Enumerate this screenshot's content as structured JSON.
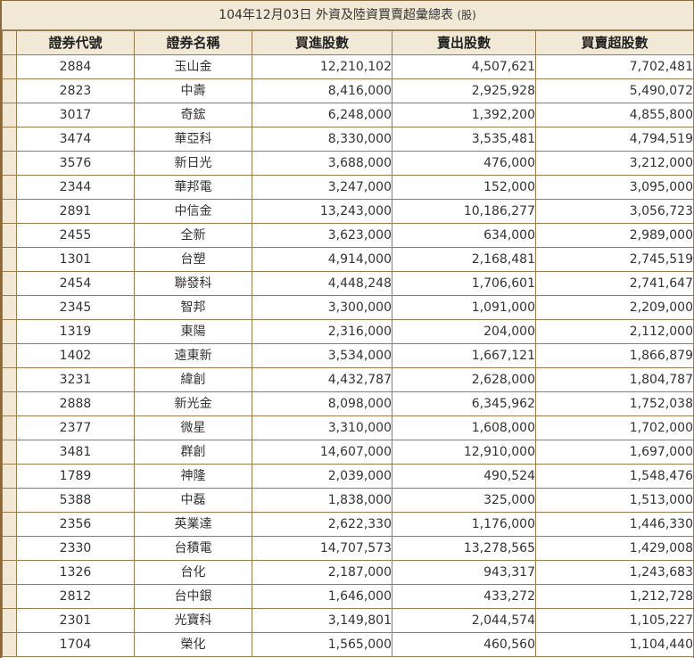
{
  "title": "104年12月03日 外資及陸資買賣超彙總表",
  "unit": "(股)",
  "headers": {
    "code": "證券代號",
    "name": "證券名稱",
    "buy": "買進股數",
    "sell": "賣出股數",
    "net": "買賣超股數"
  },
  "rows": [
    {
      "code": "2884",
      "name": "玉山金",
      "buy": "12,210,102",
      "sell": "4,507,621",
      "net": "7,702,481"
    },
    {
      "code": "2823",
      "name": "中壽",
      "buy": "8,416,000",
      "sell": "2,925,928",
      "net": "5,490,072"
    },
    {
      "code": "3017",
      "name": "奇鋐",
      "buy": "6,248,000",
      "sell": "1,392,200",
      "net": "4,855,800"
    },
    {
      "code": "3474",
      "name": "華亞科",
      "buy": "8,330,000",
      "sell": "3,535,481",
      "net": "4,794,519"
    },
    {
      "code": "3576",
      "name": "新日光",
      "buy": "3,688,000",
      "sell": "476,000",
      "net": "3,212,000"
    },
    {
      "code": "2344",
      "name": "華邦電",
      "buy": "3,247,000",
      "sell": "152,000",
      "net": "3,095,000"
    },
    {
      "code": "2891",
      "name": "中信金",
      "buy": "13,243,000",
      "sell": "10,186,277",
      "net": "3,056,723"
    },
    {
      "code": "2455",
      "name": "全新",
      "buy": "3,623,000",
      "sell": "634,000",
      "net": "2,989,000"
    },
    {
      "code": "1301",
      "name": "台塑",
      "buy": "4,914,000",
      "sell": "2,168,481",
      "net": "2,745,519"
    },
    {
      "code": "2454",
      "name": "聯發科",
      "buy": "4,448,248",
      "sell": "1,706,601",
      "net": "2,741,647"
    },
    {
      "code": "2345",
      "name": "智邦",
      "buy": "3,300,000",
      "sell": "1,091,000",
      "net": "2,209,000"
    },
    {
      "code": "1319",
      "name": "東陽",
      "buy": "2,316,000",
      "sell": "204,000",
      "net": "2,112,000"
    },
    {
      "code": "1402",
      "name": "遠東新",
      "buy": "3,534,000",
      "sell": "1,667,121",
      "net": "1,866,879"
    },
    {
      "code": "3231",
      "name": "緯創",
      "buy": "4,432,787",
      "sell": "2,628,000",
      "net": "1,804,787"
    },
    {
      "code": "2888",
      "name": "新光金",
      "buy": "8,098,000",
      "sell": "6,345,962",
      "net": "1,752,038"
    },
    {
      "code": "2377",
      "name": "微星",
      "buy": "3,310,000",
      "sell": "1,608,000",
      "net": "1,702,000"
    },
    {
      "code": "3481",
      "name": "群創",
      "buy": "14,607,000",
      "sell": "12,910,000",
      "net": "1,697,000"
    },
    {
      "code": "1789",
      "name": "神隆",
      "buy": "2,039,000",
      "sell": "490,524",
      "net": "1,548,476"
    },
    {
      "code": "5388",
      "name": "中磊",
      "buy": "1,838,000",
      "sell": "325,000",
      "net": "1,513,000"
    },
    {
      "code": "2356",
      "name": "英業達",
      "buy": "2,622,330",
      "sell": "1,176,000",
      "net": "1,446,330"
    },
    {
      "code": "2330",
      "name": "台積電",
      "buy": "14,707,573",
      "sell": "13,278,565",
      "net": "1,429,008"
    },
    {
      "code": "1326",
      "name": "台化",
      "buy": "2,187,000",
      "sell": "943,317",
      "net": "1,243,683"
    },
    {
      "code": "2812",
      "name": "台中銀",
      "buy": "1,646,000",
      "sell": "433,272",
      "net": "1,212,728"
    },
    {
      "code": "2301",
      "name": "光寶科",
      "buy": "3,149,801",
      "sell": "2,044,574",
      "net": "1,105,227"
    },
    {
      "code": "1704",
      "name": "榮化",
      "buy": "1,565,000",
      "sell": "460,560",
      "net": "1,104,440"
    }
  ],
  "colors": {
    "header_bg": "#f1e9d6",
    "border": "#9a7c50",
    "frame": "#8a6a3c"
  }
}
